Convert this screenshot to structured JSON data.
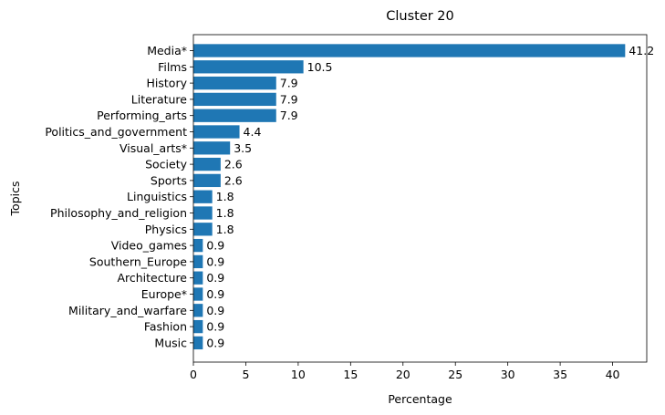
{
  "chart_data": {
    "type": "bar",
    "orientation": "horizontal",
    "title": "Cluster 20",
    "xlabel": "Percentage",
    "ylabel": "Topics",
    "xlim": [
      0,
      43.26
    ],
    "xticks": [
      0,
      5,
      10,
      15,
      20,
      25,
      30,
      35,
      40
    ],
    "grid": false,
    "bar_color": "#1f77b4",
    "categories": [
      "Media*",
      "Films",
      "History",
      "Literature",
      "Performing_arts",
      "Politics_and_government",
      "Visual_arts*",
      "Society",
      "Sports",
      "Linguistics",
      "Philosophy_and_religion",
      "Physics",
      "Video_games",
      "Southern_Europe",
      "Architecture",
      "Europe*",
      "Military_and_warfare",
      "Fashion",
      "Music"
    ],
    "values": [
      41.2,
      10.5,
      7.9,
      7.9,
      7.9,
      4.4,
      3.5,
      2.6,
      2.6,
      1.8,
      1.8,
      1.8,
      0.9,
      0.9,
      0.9,
      0.9,
      0.9,
      0.9,
      0.9
    ],
    "value_labels": [
      "41.2",
      "10.5",
      "7.9",
      "7.9",
      "7.9",
      "4.4",
      "3.5",
      "2.6",
      "2.6",
      "1.8",
      "1.8",
      "1.8",
      "0.9",
      "0.9",
      "0.9",
      "0.9",
      "0.9",
      "0.9",
      "0.9"
    ]
  }
}
